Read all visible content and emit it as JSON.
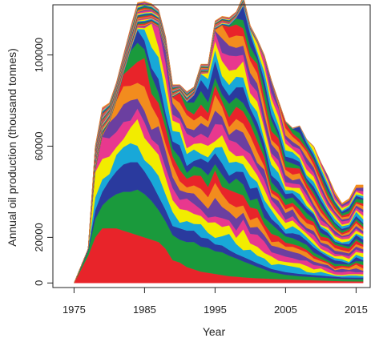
{
  "chart_data": {
    "type": "area",
    "stacked": true,
    "title": "",
    "xlabel": "Year",
    "ylabel": "Annual oil production (thousand tonnes)",
    "xlim": [
      1972,
      2017
    ],
    "ylim": [
      -2000,
      122000
    ],
    "x_ticks": [
      1975,
      1985,
      1995,
      2005,
      2015
    ],
    "y_ticks": [
      0,
      20000,
      60000,
      100000
    ],
    "legend": "none",
    "grid": false,
    "layer_count": 40,
    "layer_colors": [
      "#e8242a",
      "#1a9a3c",
      "#2a3a9e",
      "#18a8d8",
      "#f2ec00",
      "#e8388e",
      "#6b3fa0",
      "#f28c1e"
    ],
    "x": [
      1975,
      1977,
      1978,
      1979,
      1980,
      1981,
      1982,
      1983,
      1984,
      1985,
      1986,
      1987,
      1988,
      1989,
      1990,
      1991,
      1992,
      1993,
      1994,
      1995,
      1996,
      1997,
      1998,
      1999,
      2000,
      2001,
      2002,
      2003,
      2004,
      2005,
      2006,
      2007,
      2008,
      2009,
      2010,
      2011,
      2012,
      2013,
      2014,
      2015,
      2016
    ],
    "total": [
      0,
      15000,
      60000,
      77000,
      79000,
      88000,
      100000,
      112000,
      123000,
      123500,
      122500,
      120000,
      108000,
      87000,
      87000,
      84000,
      86000,
      96000,
      96000,
      115000,
      117000,
      116500,
      119000,
      126000,
      113000,
      107000,
      100000,
      89000,
      80000,
      71000,
      68000,
      69000,
      63000,
      60000,
      53000,
      47000,
      40000,
      35000,
      37000,
      43000,
      43000
    ],
    "bottom_layers": {
      "red": [
        0,
        12000,
        20000,
        24000,
        24000,
        24000,
        23000,
        22000,
        21000,
        20000,
        19000,
        18000,
        15000,
        10000,
        9000,
        7000,
        6000,
        5000,
        4500,
        4000,
        3500,
        3000,
        2800,
        2500,
        2300,
        2100,
        2000,
        1800,
        1700,
        1600,
        1500,
        1400,
        1300,
        1200,
        1100,
        1000,
        900,
        800,
        750,
        700,
        700
      ],
      "green": [
        0,
        2000,
        8000,
        10000,
        13000,
        15000,
        17000,
        18000,
        20000,
        19000,
        17000,
        14000,
        12000,
        11000,
        10000,
        11000,
        12000,
        11000,
        11000,
        10000,
        10000,
        9000,
        8000,
        7000,
        6000,
        5000,
        4000,
        3000,
        2500,
        2000,
        1800,
        1600,
        1500,
        1400,
        1300,
        1200,
        1100,
        1000,
        1000,
        1000,
        1000
      ],
      "navy": [
        0,
        1000,
        4000,
        6000,
        8000,
        10000,
        12000,
        13000,
        12000,
        10000,
        8000,
        6000,
        5000,
        4000,
        5000,
        5000,
        5000,
        4000,
        4000,
        3000,
        3000,
        2500,
        2000,
        2000,
        1800,
        1600,
        1500,
        1400,
        1300,
        1200,
        1100,
        1000,
        1000,
        900,
        900,
        800,
        800,
        700,
        700,
        700,
        700
      ]
    }
  }
}
